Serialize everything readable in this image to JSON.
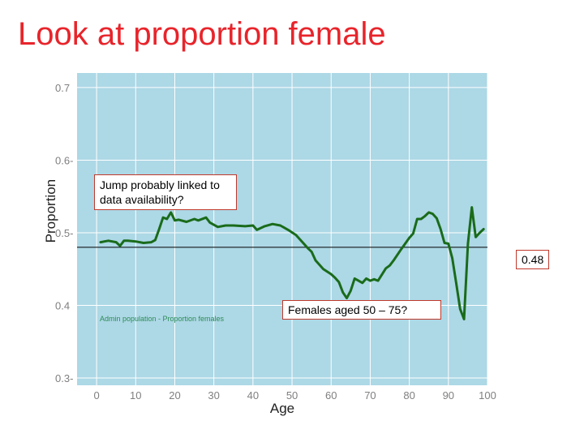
{
  "slide": {
    "title": "Look at proportion female"
  },
  "chart_data": {
    "type": "line",
    "xlabel": "Age",
    "ylabel": "Proportion",
    "xlim": [
      -5,
      100
    ],
    "ylim": [
      0.29,
      0.72
    ],
    "x_ticks": [
      0,
      10,
      20,
      30,
      40,
      50,
      60,
      70,
      80,
      90,
      100
    ],
    "y_ticks": [
      0.3,
      0.4,
      0.5,
      0.6,
      0.7
    ],
    "x_tick_labels": [
      "0",
      "10",
      "20",
      "30",
      "40",
      "50",
      "60",
      "70",
      "80",
      "90",
      "100"
    ],
    "y_tick_labels": [
      "0.3-",
      "0.4",
      "0.5-",
      "0.6-",
      "0.7"
    ],
    "grid": true,
    "legend_text": "Admin population - Proportion females",
    "series": [
      {
        "color": "#1a6b1a",
        "x": [
          1,
          3,
          5,
          6,
          7,
          8,
          10,
          12,
          14,
          15,
          16,
          17,
          18,
          19,
          20,
          21,
          23,
          25,
          26,
          28,
          29,
          31,
          33,
          35,
          38,
          40,
          41,
          43,
          45,
          47,
          48,
          49,
          51,
          53,
          54,
          55,
          56,
          58,
          60,
          61,
          62,
          63,
          64,
          65,
          66,
          67,
          68,
          69,
          70,
          71,
          72,
          74,
          75,
          76,
          78,
          80,
          81,
          82,
          83,
          84,
          85,
          86,
          87,
          88,
          89,
          90,
          91,
          92,
          93,
          94,
          95,
          96,
          97,
          98,
          99
        ],
        "y": [
          0.487,
          0.489,
          0.487,
          0.482,
          0.489,
          0.489,
          0.488,
          0.486,
          0.487,
          0.49,
          0.505,
          0.521,
          0.519,
          0.528,
          0.517,
          0.518,
          0.515,
          0.519,
          0.517,
          0.521,
          0.514,
          0.508,
          0.51,
          0.51,
          0.509,
          0.51,
          0.504,
          0.509,
          0.512,
          0.51,
          0.507,
          0.504,
          0.497,
          0.485,
          0.479,
          0.474,
          0.462,
          0.45,
          0.443,
          0.438,
          0.432,
          0.418,
          0.41,
          0.42,
          0.437,
          0.434,
          0.431,
          0.437,
          0.434,
          0.436,
          0.434,
          0.451,
          0.455,
          0.462,
          0.478,
          0.493,
          0.499,
          0.519,
          0.519,
          0.523,
          0.528,
          0.526,
          0.52,
          0.505,
          0.486,
          0.485,
          0.465,
          0.431,
          0.395,
          0.381,
          0.485,
          0.535,
          0.494,
          0.5,
          0.505
        ]
      }
    ],
    "reference_line": {
      "y": 0.48,
      "color": "#000000",
      "label": "0.48"
    },
    "annotations": [
      {
        "text": "Jump probably linked to data availability?"
      },
      {
        "text": "Females aged 50 – 75?"
      }
    ]
  },
  "colors": {
    "panel": "#add8e6",
    "grid": "#ffffff",
    "line": "#1a6b1a",
    "title": "#e8242b",
    "callout_border": "#c0392b"
  }
}
